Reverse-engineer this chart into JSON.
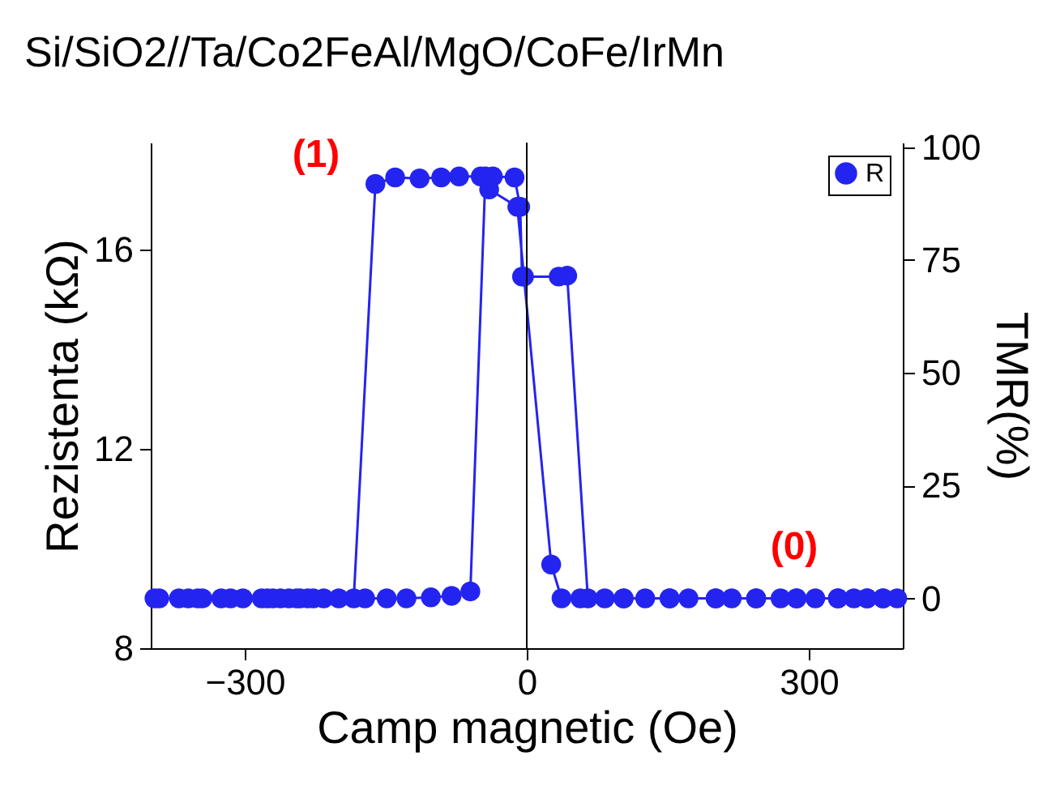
{
  "chart_data": {
    "type": "line",
    "title": "Si/SiO2//Ta/Co2FeAl/MgO/CoFe/IrMn",
    "xlabel": "Camp magnetic (Oe)",
    "ylabel": "Rezistenta (kΩ)",
    "y2label": "TMR(%)",
    "xlim": [
      -400,
      400
    ],
    "xticks": [
      -300,
      0,
      300
    ],
    "ylim": [
      8,
      18.15
    ],
    "yticks": [
      8,
      12,
      16
    ],
    "y2lim": [
      -11,
      101
    ],
    "y2ticks": [
      0,
      25,
      50,
      75,
      100
    ],
    "grid": false,
    "legend": "top right",
    "marker": "circle",
    "line_style": "solid",
    "ref_lines": [
      {
        "axis": "x",
        "value": 0,
        "color": "#000000"
      }
    ],
    "annotations": [
      "(1)",
      "(0)"
    ],
    "x": [
      -391,
      -370,
      -350,
      -345,
      -325,
      -302,
      -282,
      -276,
      -262,
      -253,
      -241,
      -233,
      -227,
      -216,
      -184,
      -161,
      -140,
      -114,
      -91,
      -72,
      -49,
      -36,
      -13,
      -7,
      -5,
      34,
      43,
      65,
      83,
      103,
      126,
      152,
      172,
      201,
      218,
      244,
      270,
      287,
      307,
      331,
      348,
      362,
      379,
      394,
      379,
      362,
      331,
      287,
      244,
      201,
      152,
      103,
      57,
      37,
      26,
      -3,
      -10,
      -40,
      -44,
      -60,
      -80,
      -102,
      -128,
      -149,
      -172,
      -200,
      -245,
      -270,
      -315,
      -360,
      -396
    ],
    "series": [
      {
        "name": "R",
        "color": "#2424f0",
        "values": [
          9.0,
          9.0,
          9.0,
          9.0,
          9.0,
          9.0,
          9.0,
          9.0,
          9.0,
          9.0,
          9.0,
          9.0,
          9.0,
          9.0,
          9.0,
          17.32,
          17.45,
          17.43,
          17.45,
          17.47,
          17.47,
          17.47,
          17.45,
          16.86,
          15.46,
          15.46,
          15.48,
          9.0,
          9.0,
          9.0,
          9.0,
          9.0,
          9.0,
          9.0,
          9.0,
          9.0,
          9.0,
          9.0,
          9.0,
          9.0,
          9.0,
          9.0,
          9.0,
          9.0,
          9.0,
          9.0,
          9.0,
          9.0,
          9.0,
          9.0,
          9.0,
          9.0,
          9.0,
          9.0,
          9.68,
          15.46,
          16.86,
          17.21,
          17.47,
          9.14,
          9.05,
          9.02,
          9.0,
          9.0,
          9.0,
          9.0,
          9.0,
          9.0,
          9.0,
          9.0,
          9.0
        ]
      }
    ]
  }
}
